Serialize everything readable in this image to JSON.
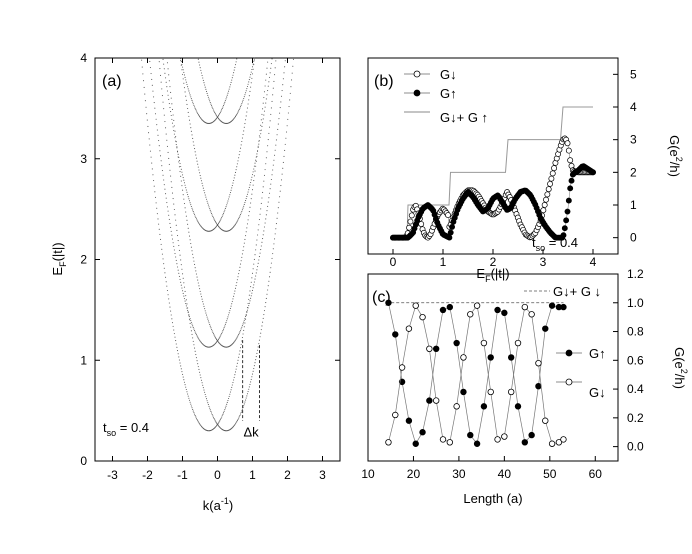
{
  "figure": {
    "panels": [
      "(a)",
      "(b)",
      "(c)"
    ]
  },
  "chart_data": [
    {
      "id": "a",
      "type": "scatter",
      "panel_label": "(a)",
      "xlabel": "k(a⁻¹)",
      "ylabel": "E_F(|t|)",
      "xlim": [
        -3.5,
        3.5
      ],
      "ylim": [
        0,
        4
      ],
      "xticks": [
        -3,
        -2,
        -1,
        0,
        1,
        2,
        3
      ],
      "yticks": [
        0,
        1,
        2,
        3,
        4
      ],
      "annotation": "t_so = 0.4",
      "delta_label": "Δk",
      "delta_k": {
        "k1": 0.72,
        "k2": 1.2,
        "E": [
          0.4,
          1.2
        ]
      },
      "bands": [
        {
          "center": -0.25,
          "min": 0.3,
          "curv": 1.0
        },
        {
          "center": 0.25,
          "min": 0.3,
          "curv": 1.0
        },
        {
          "center": -0.25,
          "min": 1.13,
          "curv": 1.0
        },
        {
          "center": 0.25,
          "min": 1.13,
          "curv": 1.0
        },
        {
          "center": -0.25,
          "min": 2.28,
          "curv": 1.0
        },
        {
          "center": 0.25,
          "min": 2.28,
          "curv": 1.0
        },
        {
          "center": -0.25,
          "min": 3.35,
          "curv": 1.0
        },
        {
          "center": 0.25,
          "min": 3.35,
          "curv": 1.0
        }
      ]
    },
    {
      "id": "b",
      "type": "line",
      "panel_label": "(b)",
      "xlabel": "E_F(|t|)",
      "ylabel": "G(e²/h)",
      "xlim": [
        -0.5,
        4.5
      ],
      "ylim": [
        -0.5,
        5.5
      ],
      "xticks": [
        0,
        1,
        2,
        3,
        4
      ],
      "yticks": [
        0,
        1,
        2,
        3,
        4,
        5
      ],
      "annotation": "t_so = 0.4",
      "legend_position": "top-left",
      "series": [
        {
          "name": "G↓",
          "marker": "open-circle",
          "x": [
            0.0,
            0.25,
            0.3,
            0.35,
            0.4,
            0.45,
            0.5,
            0.55,
            0.6,
            0.65,
            0.7,
            0.75,
            0.8,
            0.9,
            1.0,
            1.1,
            1.13,
            1.2,
            1.3,
            1.4,
            1.5,
            1.6,
            1.7,
            1.8,
            1.9,
            2.0,
            2.1,
            2.2,
            2.28,
            2.35,
            2.45,
            2.55,
            2.65,
            2.75,
            2.85,
            2.95,
            3.05,
            3.15,
            3.25,
            3.35,
            3.4,
            3.45,
            3.5,
            3.55,
            3.6,
            3.7,
            3.8,
            3.9,
            4.0
          ],
          "values": [
            0.0,
            0.0,
            0.15,
            0.5,
            0.85,
            1.0,
            0.8,
            0.5,
            0.2,
            0.05,
            0.0,
            0.1,
            0.3,
            0.7,
            0.9,
            0.7,
            0.3,
            0.6,
            1.0,
            1.3,
            1.45,
            1.45,
            1.3,
            1.05,
            0.8,
            0.7,
            0.8,
            1.1,
            1.4,
            1.2,
            0.8,
            0.4,
            0.1,
            0.0,
            0.15,
            0.5,
            1.1,
            1.7,
            2.3,
            2.8,
            3.0,
            3.05,
            2.85,
            2.3,
            2.05,
            2.0,
            2.0,
            2.0,
            2.0
          ]
        },
        {
          "name": "G↑",
          "marker": "filled-circle",
          "x": [
            0.0,
            0.25,
            0.3,
            0.4,
            0.5,
            0.6,
            0.7,
            0.8,
            0.9,
            1.0,
            1.13,
            1.2,
            1.3,
            1.4,
            1.5,
            1.6,
            1.7,
            1.8,
            1.9,
            2.0,
            2.1,
            2.2,
            2.28,
            2.35,
            2.45,
            2.55,
            2.65,
            2.75,
            2.85,
            2.95,
            3.05,
            3.15,
            3.25,
            3.35,
            3.4,
            3.45,
            3.5,
            3.55,
            3.6,
            3.7,
            3.8,
            3.9,
            4.0
          ],
          "values": [
            0.0,
            0.0,
            0.0,
            0.15,
            0.6,
            0.9,
            1.0,
            0.85,
            0.4,
            0.1,
            0.0,
            0.45,
            0.9,
            1.2,
            1.4,
            1.25,
            1.0,
            0.8,
            0.9,
            1.2,
            1.3,
            1.05,
            0.85,
            0.9,
            1.2,
            1.4,
            1.45,
            1.3,
            1.0,
            0.6,
            0.35,
            0.15,
            0.0,
            0.0,
            0.0,
            0.4,
            0.9,
            1.6,
            1.95,
            2.05,
            2.2,
            2.1,
            2.0
          ]
        },
        {
          "name": "G↓+ G ↑",
          "marker": "line",
          "x": [
            0.0,
            0.28,
            0.3,
            1.12,
            1.15,
            2.25,
            2.3,
            3.35,
            3.4,
            4.0
          ],
          "values": [
            0.0,
            0.0,
            1.0,
            1.0,
            2.0,
            2.0,
            3.0,
            3.0,
            4.0,
            4.0
          ]
        }
      ]
    },
    {
      "id": "c",
      "type": "line",
      "panel_label": "(c)",
      "xlabel": "Length (a)",
      "ylabel": "G(e²/h)",
      "xlim": [
        10,
        65
      ],
      "ylim": [
        -0.1,
        1.2
      ],
      "xticks": [
        10,
        20,
        30,
        40,
        50,
        60
      ],
      "yticks": [
        0.0,
        0.2,
        0.4,
        0.6,
        0.8,
        1.0,
        1.2
      ],
      "legend_position": "right",
      "series": [
        {
          "name": "G↓+ G ↓",
          "marker": "dashed",
          "x": [
            14,
            53
          ],
          "values": [
            1.0,
            1.0
          ]
        },
        {
          "name": "G↑",
          "marker": "filled-circle",
          "x": [
            14.5,
            16,
            17.5,
            19,
            20.5,
            22,
            23.5,
            25,
            26.5,
            28,
            29.5,
            31,
            32.5,
            34,
            35.5,
            37,
            38.5,
            40,
            41.5,
            43,
            44.5,
            46,
            47.5,
            49,
            50.5,
            52,
            53
          ],
          "values": [
            1.0,
            0.78,
            0.45,
            0.18,
            0.02,
            0.1,
            0.32,
            0.68,
            0.95,
            0.97,
            0.72,
            0.38,
            0.08,
            0.02,
            0.28,
            0.62,
            0.95,
            0.93,
            0.62,
            0.28,
            0.03,
            0.08,
            0.42,
            0.82,
            0.98,
            0.97,
            0.97
          ]
        },
        {
          "name": "G↓",
          "marker": "open-circle",
          "x": [
            14.5,
            16,
            17.5,
            19,
            20.5,
            22,
            23.5,
            25,
            26.5,
            28,
            29.5,
            31,
            32.5,
            34,
            35.5,
            37,
            38.5,
            40,
            41.5,
            43,
            44.5,
            46,
            47.5,
            49,
            50.5,
            52,
            53
          ],
          "values": [
            0.03,
            0.22,
            0.55,
            0.82,
            0.98,
            0.9,
            0.68,
            0.32,
            0.05,
            0.03,
            0.28,
            0.62,
            0.92,
            0.98,
            0.72,
            0.38,
            0.05,
            0.07,
            0.38,
            0.72,
            0.97,
            0.92,
            0.58,
            0.18,
            0.02,
            0.03,
            0.05
          ]
        }
      ]
    }
  ]
}
